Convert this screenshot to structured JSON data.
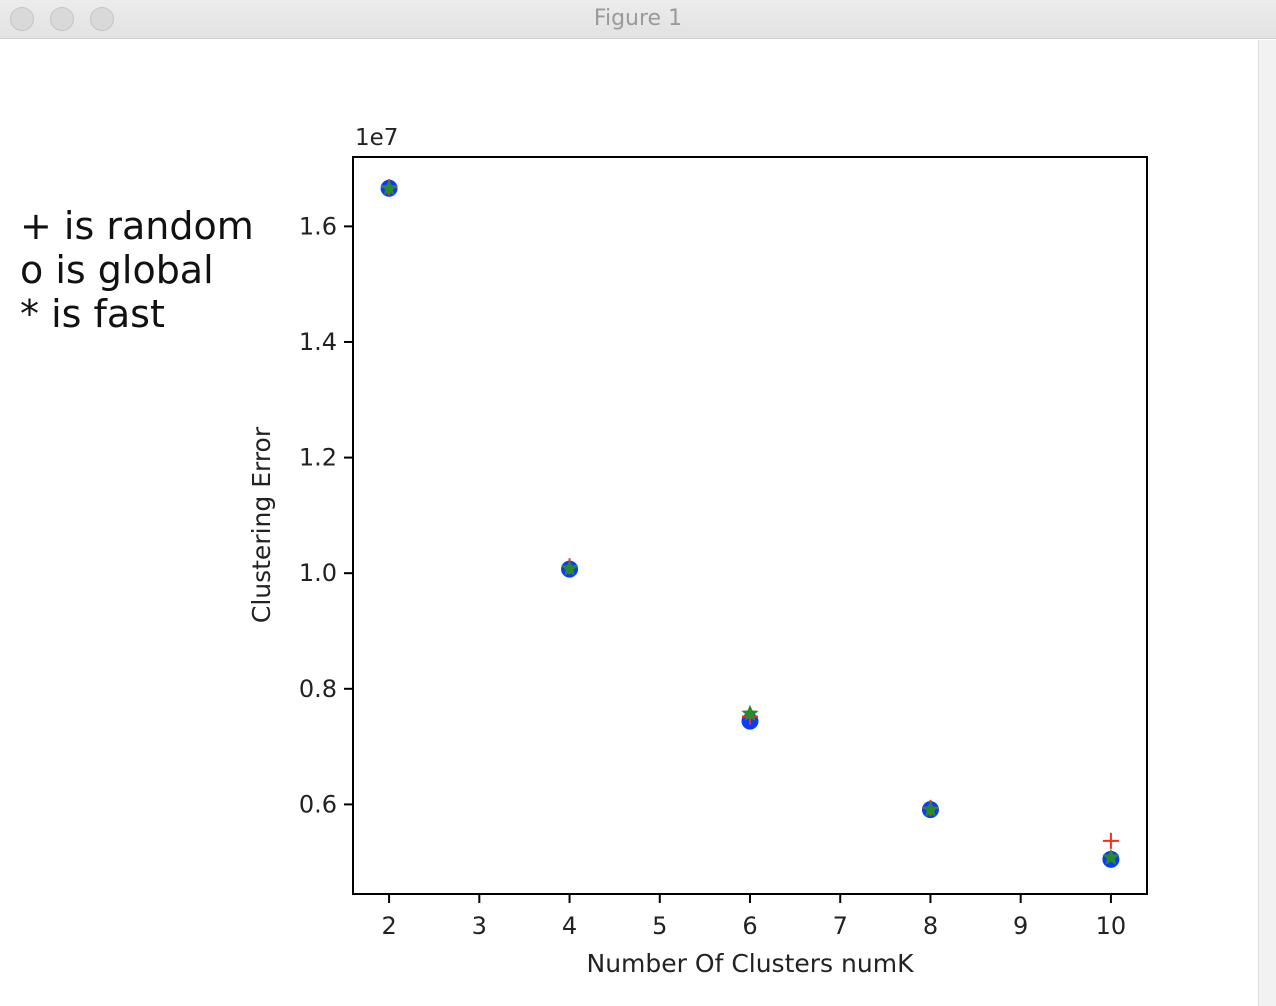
{
  "window": {
    "title": "Figure 1",
    "buttons": [
      "close-button",
      "minimize-button",
      "zoom-button"
    ]
  },
  "annotation_lines": [
    "+ is random",
    "o is global",
    "* is fast"
  ],
  "chart_data": {
    "type": "scatter",
    "xlabel": "Number Of Clusters numK",
    "ylabel": "Clustering Error",
    "y_offset_label": "1e7",
    "xlim": [
      1.6,
      10.4
    ],
    "ylim": [
      0.445,
      1.72
    ],
    "x_ticks": [
      2,
      3,
      4,
      5,
      6,
      7,
      8,
      9,
      10
    ],
    "y_ticks": [
      0.6,
      0.8,
      1.0,
      1.2,
      1.4,
      1.6
    ],
    "y_tick_labels": [
      "0.6",
      "0.8",
      "1.0",
      "1.2",
      "1.4",
      "1.6"
    ],
    "grid": false,
    "series": [
      {
        "marker": "o",
        "color": "#0a3cff",
        "x": [
          2,
          4,
          6,
          8,
          10
        ],
        "y": [
          1.666,
          1.007,
          0.744,
          0.591,
          0.505
        ]
      },
      {
        "marker": "+",
        "color": "#ff2a1a",
        "x": [
          2,
          4,
          6,
          8,
          10
        ],
        "y": [
          1.668,
          1.012,
          0.752,
          0.594,
          0.537
        ]
      },
      {
        "marker": "*",
        "color": "#2a8a2a",
        "x": [
          2,
          4,
          6,
          8,
          10
        ],
        "y": [
          1.666,
          1.008,
          0.757,
          0.591,
          0.508
        ]
      }
    ]
  }
}
